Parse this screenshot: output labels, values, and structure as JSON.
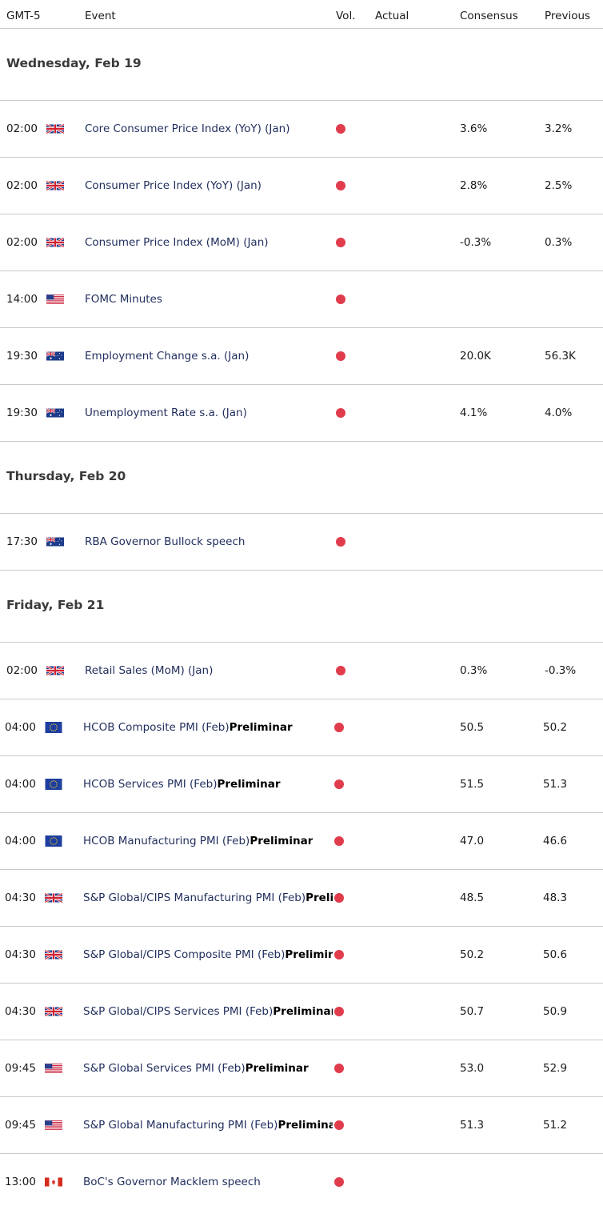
{
  "header": {
    "timezone": "GMT-5",
    "event": "Event",
    "vol": "Vol.",
    "actual": "Actual",
    "consensus": "Consensus",
    "previous": "Previous"
  },
  "colors": {
    "volume_dot": "#e03c4c",
    "event_text": "#1f2d5c",
    "divider": "#c9c9c9"
  },
  "days": [
    {
      "label": "Wednesday, Feb 19",
      "events": [
        {
          "time": "02:00",
          "flag": "uk-flag-icon",
          "name": "Core Consumer Price Index (YoY) (Jan)",
          "suffix": "",
          "consensus": "3.6%",
          "previous": "3.2%"
        },
        {
          "time": "02:00",
          "flag": "uk-flag-icon",
          "name": "Consumer Price Index (YoY) (Jan)",
          "suffix": "",
          "consensus": "2.8%",
          "previous": "2.5%"
        },
        {
          "time": "02:00",
          "flag": "uk-flag-icon",
          "name": "Consumer Price Index (MoM) (Jan)",
          "suffix": "",
          "consensus": "-0.3%",
          "previous": "0.3%"
        },
        {
          "time": "14:00",
          "flag": "us-flag-icon",
          "name": "FOMC Minutes",
          "suffix": "",
          "consensus": "",
          "previous": ""
        },
        {
          "time": "19:30",
          "flag": "au-flag-icon",
          "name": "Employment Change s.a. (Jan)",
          "suffix": "",
          "consensus": "20.0K",
          "previous": "56.3K"
        },
        {
          "time": "19:30",
          "flag": "au-flag-icon",
          "name": "Unemployment Rate s.a. (Jan)",
          "suffix": "",
          "consensus": "4.1%",
          "previous": "4.0%"
        }
      ]
    },
    {
      "label": "Thursday, Feb 20",
      "events": [
        {
          "time": "17:30",
          "flag": "au-flag-icon",
          "name": "RBA Governor Bullock speech",
          "suffix": "",
          "consensus": "",
          "previous": ""
        }
      ]
    },
    {
      "label": "Friday, Feb 21",
      "events": [
        {
          "time": "02:00",
          "flag": "uk-flag-icon",
          "name": "Retail Sales (MoM) (Jan)",
          "suffix": "",
          "consensus": "0.3%",
          "previous": "-0.3%"
        },
        {
          "time": "04:00",
          "flag": "eu-flag-icon",
          "name": "HCOB Composite PMI (Feb)",
          "suffix": "Preliminar",
          "consensus": "50.5",
          "previous": "50.2"
        },
        {
          "time": "04:00",
          "flag": "eu-flag-icon",
          "name": "HCOB Services PMI (Feb)",
          "suffix": "Preliminar",
          "consensus": "51.5",
          "previous": "51.3"
        },
        {
          "time": "04:00",
          "flag": "eu-flag-icon",
          "name": "HCOB Manufacturing PMI (Feb)",
          "suffix": "Preliminar",
          "consensus": "47.0",
          "previous": "46.6"
        },
        {
          "time": "04:30",
          "flag": "uk-flag-icon",
          "name": "S&P Global/CIPS Manufacturing PMI (Feb)",
          "suffix": "Preliminar",
          "consensus": "48.5",
          "previous": "48.3"
        },
        {
          "time": "04:30",
          "flag": "uk-flag-icon",
          "name": "S&P Global/CIPS Composite PMI (Feb)",
          "suffix": "Preliminar",
          "consensus": "50.2",
          "previous": "50.6"
        },
        {
          "time": "04:30",
          "flag": "uk-flag-icon",
          "name": "S&P Global/CIPS Services PMI (Feb)",
          "suffix": "Preliminar",
          "consensus": "50.7",
          "previous": "50.9"
        },
        {
          "time": "09:45",
          "flag": "us-flag-icon",
          "name": "S&P Global Services PMI (Feb)",
          "suffix": "Preliminar",
          "consensus": "53.0",
          "previous": "52.9"
        },
        {
          "time": "09:45",
          "flag": "us-flag-icon",
          "name": "S&P Global Manufacturing PMI (Feb)",
          "suffix": "Preliminar",
          "consensus": "51.3",
          "previous": "51.2"
        },
        {
          "time": "13:00",
          "flag": "ca-flag-icon",
          "name": "BoC's Governor Macklem speech",
          "suffix": "",
          "consensus": "",
          "previous": ""
        }
      ]
    }
  ]
}
